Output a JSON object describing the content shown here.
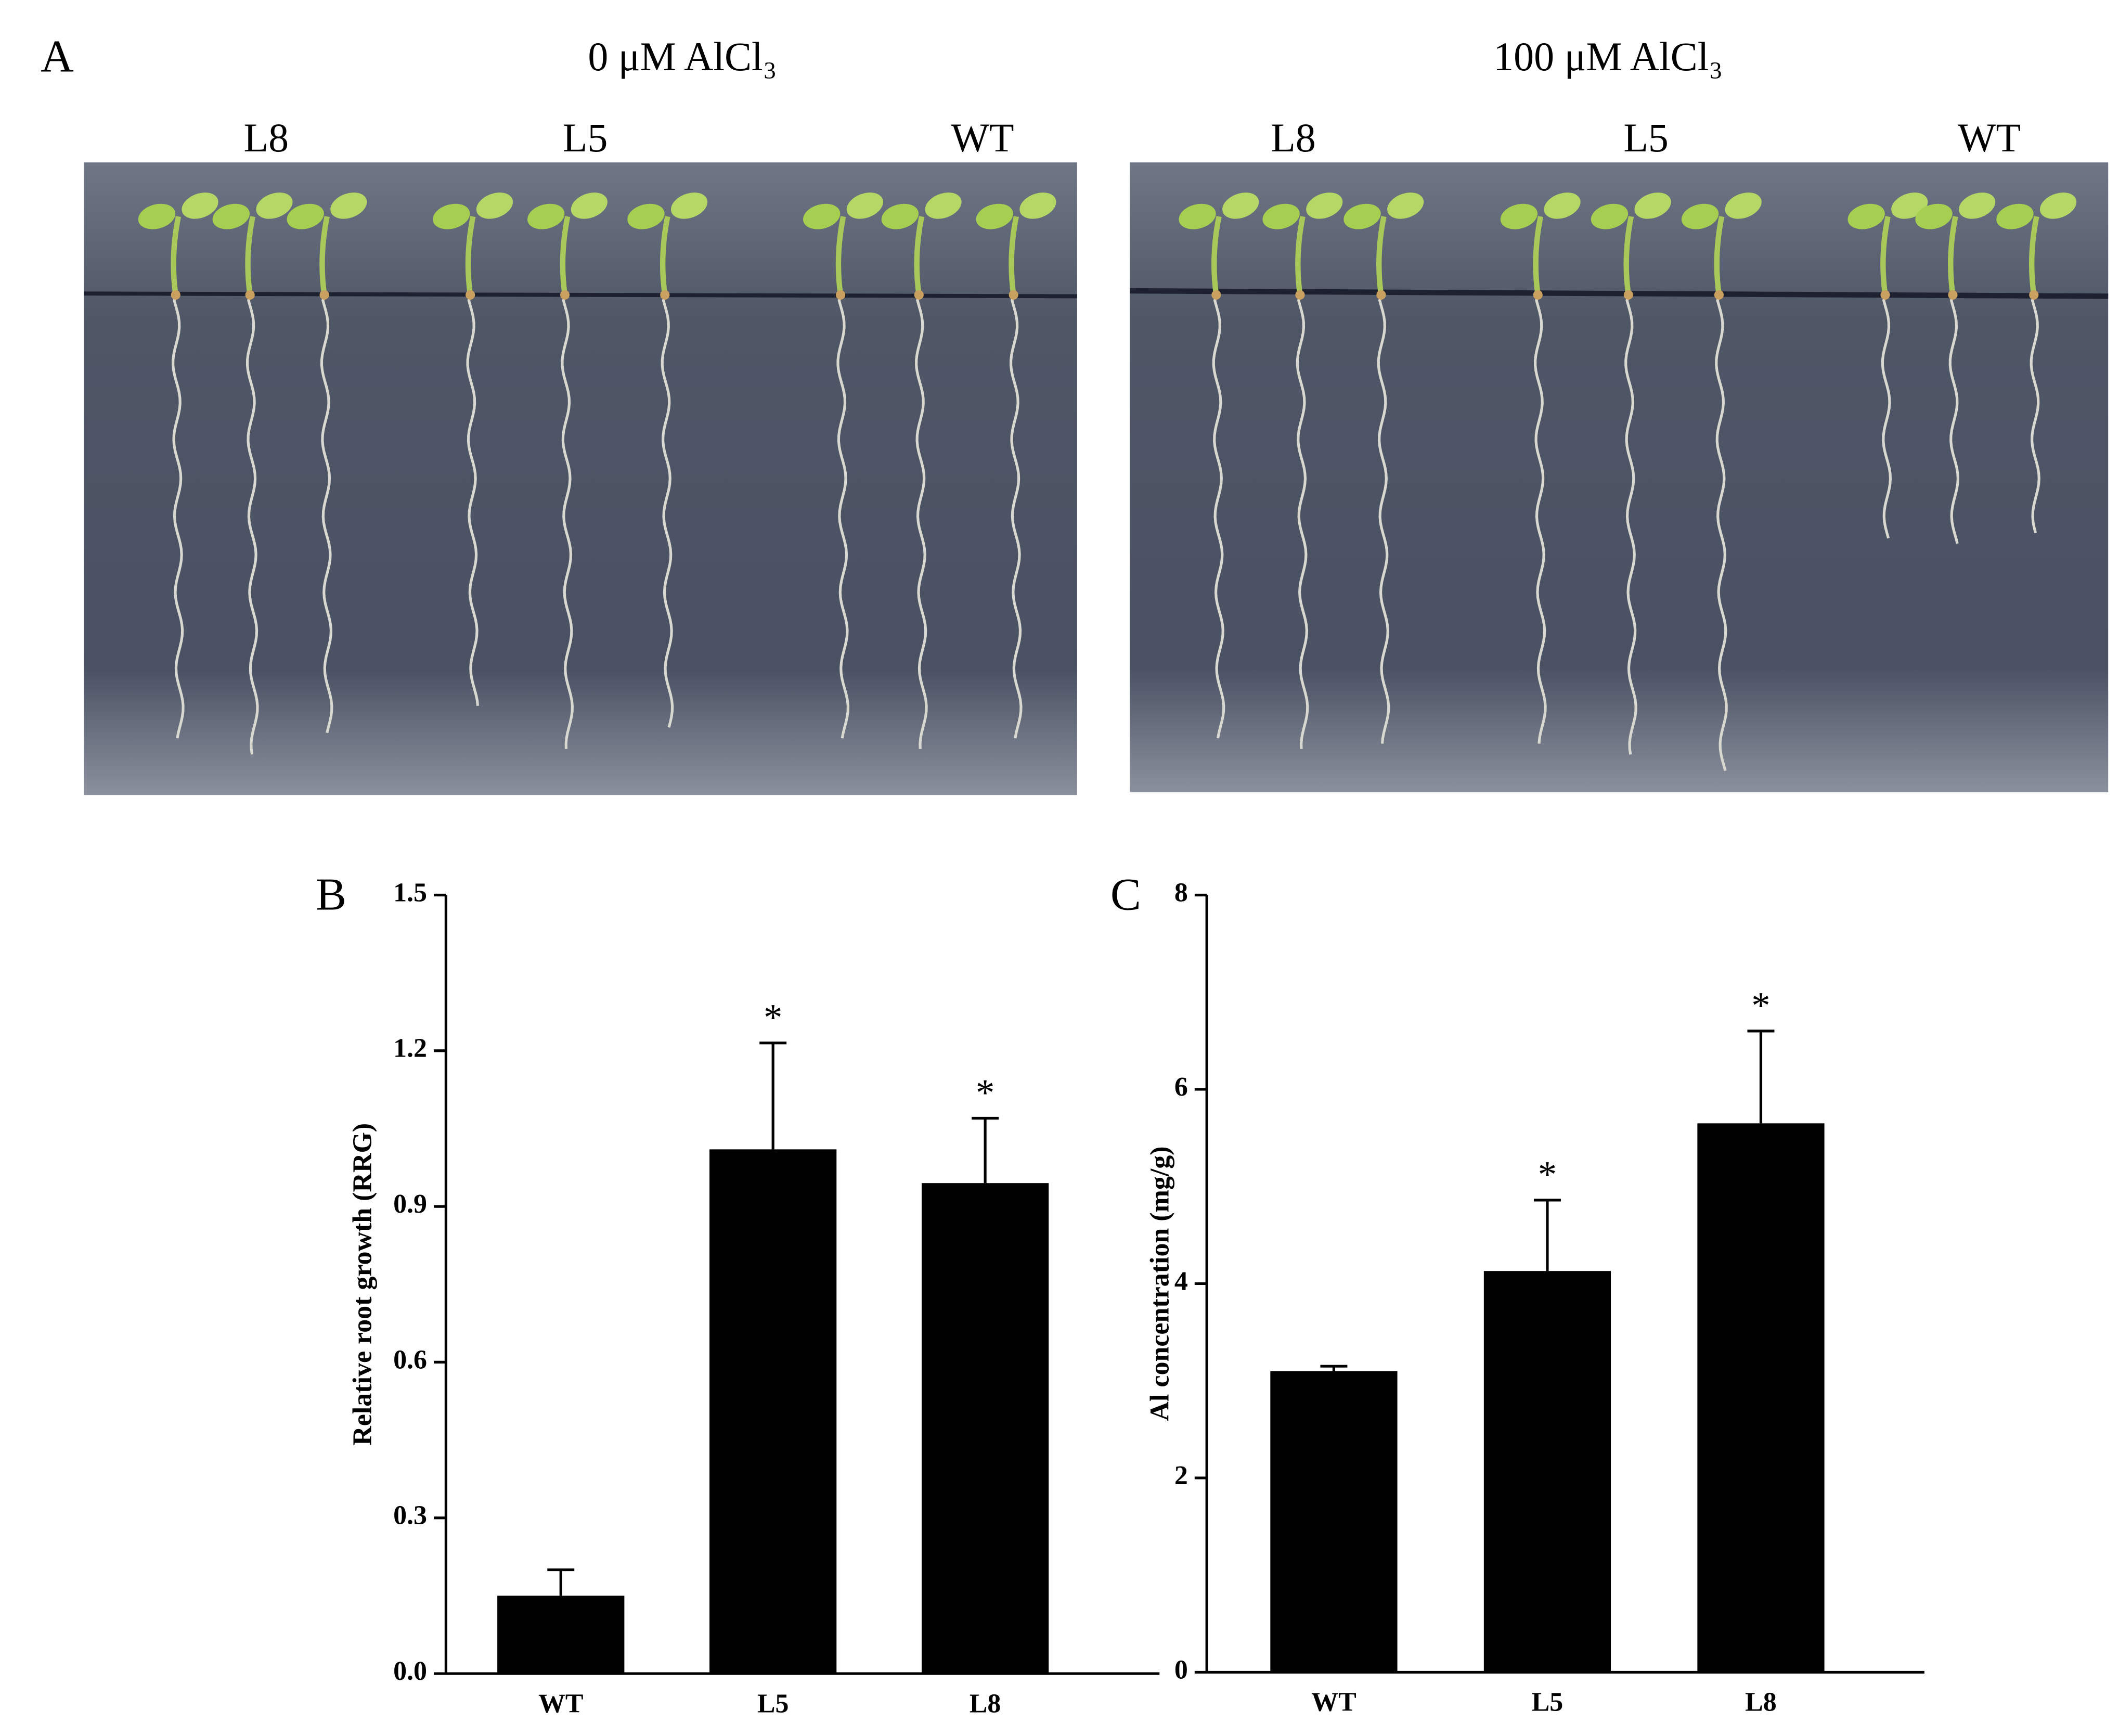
{
  "photo_panel": {
    "label": "A",
    "conditions": [
      {
        "title": "0 μM AlCl₃",
        "lines": [
          "L8",
          "L5",
          "WT"
        ]
      },
      {
        "title": "100 μM AlCl₃",
        "lines": [
          "L8",
          "L5",
          "WT"
        ]
      }
    ]
  },
  "chart_data": [
    {
      "type": "bar",
      "label": "B",
      "y_label": "Relative root growth (RRG)",
      "categories": [
        "WT",
        "L5",
        "L8"
      ],
      "values": [
        0.15,
        1.01,
        0.945
      ],
      "errors": [
        0.05,
        0.205,
        0.125
      ],
      "significance": [
        null,
        "*",
        "*"
      ],
      "color": "#000000",
      "ylim": [
        0,
        1.5
      ],
      "yticks": [
        {
          "value": 0,
          "label": "0.0"
        },
        0.3,
        0.6,
        0.9,
        1.2,
        1.5
      ]
    },
    {
      "type": "bar",
      "label": "C",
      "y_label": "Al concentration (mg/g)",
      "categories": [
        "WT",
        "L5",
        "L8"
      ],
      "values": [
        3.1,
        4.13,
        5.65
      ],
      "errors": [
        0.05,
        0.73,
        0.95
      ],
      "significance": [
        null,
        "*",
        "*"
      ],
      "color": "#000000",
      "ylim": [
        0,
        8
      ],
      "yticks": [
        0,
        2,
        4,
        6,
        8
      ]
    }
  ]
}
